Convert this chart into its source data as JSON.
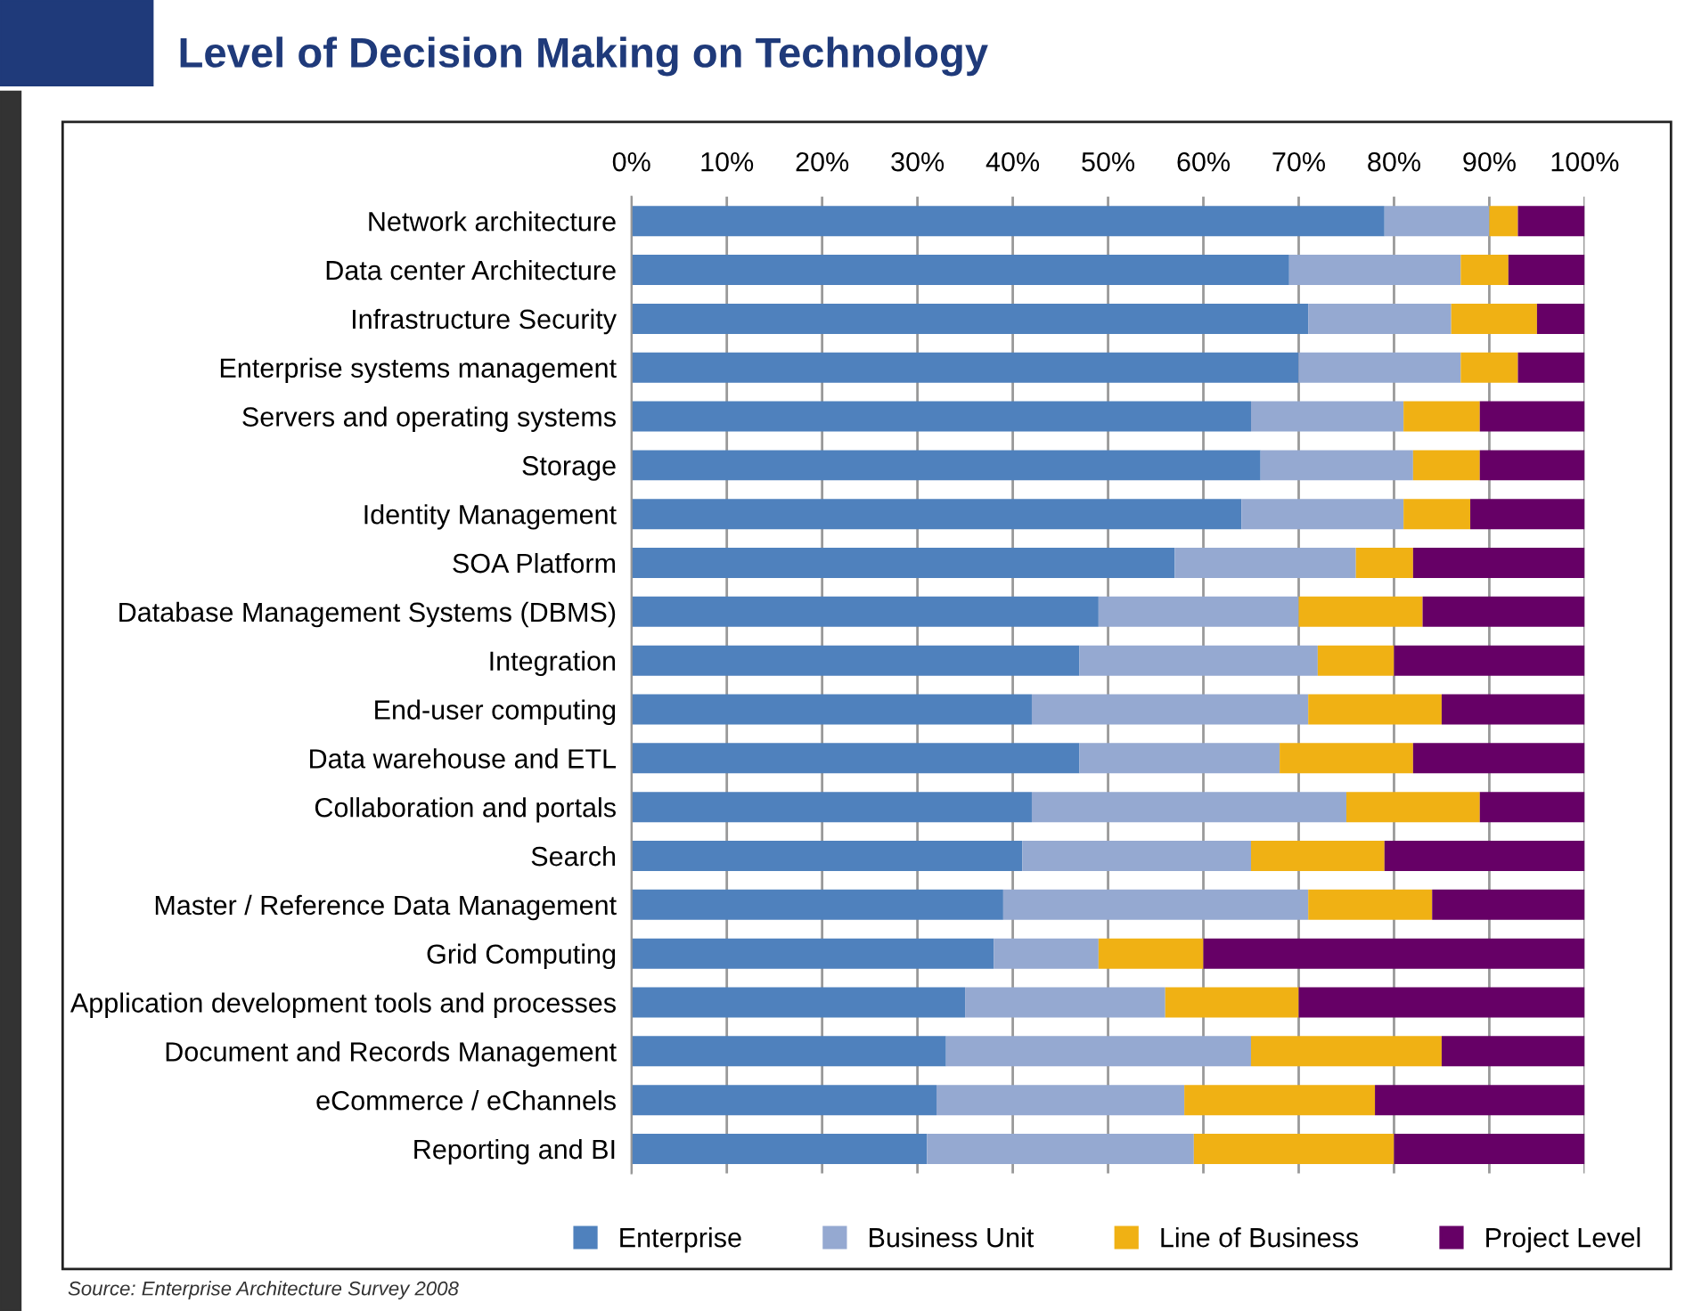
{
  "chart_data": {
    "type": "bar",
    "title": "Level of Decision Making on Technology",
    "orientation": "horizontal",
    "stacked": true,
    "categories": [
      "Network architecture",
      "Data center Architecture",
      "Infrastructure Security",
      "Enterprise systems management",
      "Servers and operating systems",
      "Storage",
      "Identity Management",
      "SOA Platform",
      "Database Management Systems (DBMS)",
      "Integration",
      "End-user computing",
      "Data warehouse and ETL",
      "Collaboration and portals",
      "Search",
      "Master / Reference Data Management",
      "Grid Computing",
      "Application development tools and processes",
      "Document and Records Management",
      "eCommerce / eChannels",
      "Reporting and BI"
    ],
    "series": [
      {
        "name": "Enterprise",
        "color": "#4f81bd",
        "values": [
          79,
          69,
          71,
          70,
          65,
          66,
          64,
          57,
          49,
          47,
          42,
          47,
          42,
          41,
          39,
          38,
          35,
          33,
          32,
          31
        ]
      },
      {
        "name": "Business Unit",
        "color": "#95a9d1",
        "values": [
          11,
          18,
          15,
          17,
          16,
          16,
          17,
          19,
          21,
          25,
          29,
          21,
          33,
          24,
          32,
          11,
          21,
          32,
          26,
          28
        ]
      },
      {
        "name": "Line of Business",
        "color": "#f0b114",
        "values": [
          3,
          5,
          9,
          6,
          8,
          7,
          7,
          6,
          13,
          8,
          14,
          14,
          14,
          14,
          13,
          11,
          14,
          20,
          20,
          21
        ]
      },
      {
        "name": "Project Level",
        "color": "#660066",
        "values": [
          7,
          8,
          5,
          7,
          11,
          11,
          12,
          18,
          17,
          20,
          15,
          18,
          11,
          21,
          16,
          40,
          30,
          15,
          22,
          20
        ]
      }
    ],
    "xlim": [
      0,
      100
    ],
    "xticks": [
      {
        "value": 0,
        "label": "0%"
      },
      {
        "value": 10,
        "label": "10%"
      },
      {
        "value": 20,
        "label": "20%"
      },
      {
        "value": 30,
        "label": "30%"
      },
      {
        "value": 40,
        "label": "40%"
      },
      {
        "value": 50,
        "label": "50%"
      },
      {
        "value": 60,
        "label": "60%"
      },
      {
        "value": 70,
        "label": "70%"
      },
      {
        "value": 80,
        "label": "80%"
      },
      {
        "value": 90,
        "label": "90%"
      },
      {
        "value": 100,
        "label": "100%"
      }
    ],
    "grid": "x",
    "legend": "bottom",
    "annotations": [
      "Source: Enterprise Architecture Survey 2008"
    ]
  }
}
